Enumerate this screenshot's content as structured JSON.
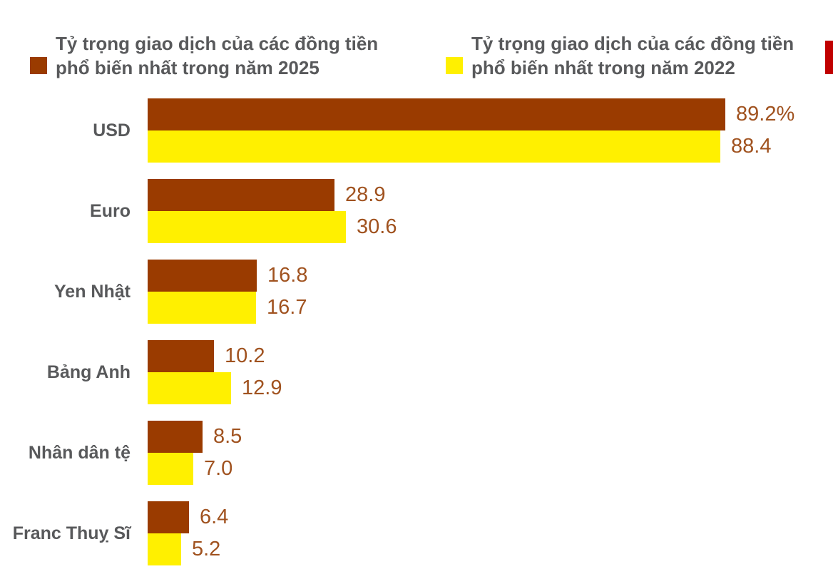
{
  "page": {
    "background": "#ffffff"
  },
  "legend": {
    "items": [
      {
        "key": "2025",
        "label": "Tỷ trọng giao dịch của các đồng tiền phổ biến nhất trong năm 2025",
        "color": "#9a3b00"
      },
      {
        "key": "2022",
        "label": "Tỷ trọng giao dịch của các đồng tiền phổ biến nhất trong năm 2022",
        "color": "#fff000"
      }
    ]
  },
  "colors": {
    "bar_2025": "#9a3b00",
    "bar_2022": "#fff000",
    "category_label": "#58595b",
    "value_label": "#a0521f",
    "edge_marker": "#c00000",
    "background": "#ffffff"
  },
  "chart_data": {
    "type": "bar",
    "orientation": "horizontal",
    "title": "",
    "xlabel": "",
    "ylabel": "",
    "unit": "%",
    "xlim": [
      0,
      100
    ],
    "grid": false,
    "legend_position": "top",
    "categories": [
      "USD",
      "Euro",
      "Yen Nhật",
      "Bảng Anh",
      "Nhân dân tệ",
      "Franc Thuỵ Sĩ"
    ],
    "series": [
      {
        "name": "Tỷ trọng giao dịch của các đồng tiền phổ biến nhất trong năm 2025",
        "color": "#9a3b00",
        "values": [
          89.2,
          28.9,
          16.8,
          10.2,
          8.5,
          6.4
        ],
        "value_labels": [
          "89.2%",
          "28.9",
          "16.8",
          "10.2",
          "8.5",
          "6.4"
        ]
      },
      {
        "name": "Tỷ trọng giao dịch của các đồng tiền phổ biến nhất trong năm 2022",
        "color": "#fff000",
        "values": [
          88.4,
          30.6,
          16.7,
          12.9,
          7.0,
          5.2
        ],
        "value_labels": [
          "88.4",
          "30.6",
          "16.7",
          "12.9",
          "7.0",
          "5.2"
        ]
      }
    ]
  }
}
